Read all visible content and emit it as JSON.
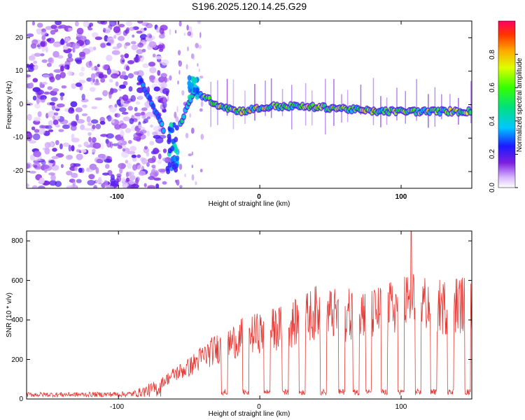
{
  "figure": {
    "title": "S196.2025.120.14.25.G29",
    "accent_series_color": "#e53935"
  },
  "chart_data": [
    {
      "type": "heatmap",
      "name": "spectrogram",
      "xlabel": "Height of straight line (km)",
      "ylabel": "Frequency (Hz)",
      "xlim": [
        -165,
        150
      ],
      "ylim": [
        -25,
        25
      ],
      "x_ticks": [
        -100,
        0,
        100
      ],
      "y_ticks": [
        20,
        10,
        0,
        -10,
        -20
      ],
      "colorbar": {
        "label": "Normalized spectral amplitude",
        "range": [
          0,
          1
        ],
        "ticks": [
          "0.0",
          "0.2",
          "0.4",
          "0.6",
          "0.8"
        ],
        "colormap": "rainbow"
      },
      "segments": [
        {
          "x": -75,
          "y": -1
        },
        {
          "x": -63,
          "y": -12
        },
        {
          "x": -46,
          "y": 4
        },
        {
          "x": -30,
          "y": 0
        },
        {
          "x": -15,
          "y": -2
        },
        {
          "x": 10,
          "y": -0.5
        },
        {
          "x": 25,
          "y": -0.5
        },
        {
          "x": 55,
          "y": -1
        },
        {
          "x": 80,
          "y": -2
        },
        {
          "x": 95,
          "y": -2
        },
        {
          "x": 125,
          "y": -2
        },
        {
          "x": 145,
          "y": -2
        }
      ]
    },
    {
      "type": "line",
      "name": "snr",
      "xlabel": "Height of straight line (km)",
      "ylabel": "SNR (10 * v/v)",
      "xlim": [
        -165,
        150
      ],
      "ylim": [
        0,
        850
      ],
      "x_ticks": [
        -100,
        0,
        100
      ],
      "y_ticks": [
        0,
        200,
        400,
        600,
        800
      ],
      "series": [
        {
          "color": "#e53935",
          "envelope": [
            {
              "x": -165,
              "y": 30
            },
            {
              "x": -120,
              "y": 30
            },
            {
              "x": -90,
              "y": 35
            },
            {
              "x": -70,
              "y": 100
            },
            {
              "x": -60,
              "y": 160
            },
            {
              "x": -50,
              "y": 200
            },
            {
              "x": -40,
              "y": 270
            },
            {
              "x": -30,
              "y": 320
            },
            {
              "x": -20,
              "y": 360
            },
            {
              "x": -10,
              "y": 400
            },
            {
              "x": 0,
              "y": 420
            },
            {
              "x": 10,
              "y": 440
            },
            {
              "x": 20,
              "y": 460
            },
            {
              "x": 30,
              "y": 500
            },
            {
              "x": 40,
              "y": 550
            },
            {
              "x": 50,
              "y": 540
            },
            {
              "x": 60,
              "y": 520
            },
            {
              "x": 70,
              "y": 560
            },
            {
              "x": 80,
              "y": 540
            },
            {
              "x": 90,
              "y": 560
            },
            {
              "x": 100,
              "y": 600
            },
            {
              "x": 110,
              "y": 620
            },
            {
              "x": 120,
              "y": 600
            },
            {
              "x": 130,
              "y": 580
            },
            {
              "x": 140,
              "y": 600
            },
            {
              "x": 150,
              "y": 600
            }
          ],
          "dropouts": [
            -25,
            -10,
            5,
            18,
            30,
            45,
            58,
            68,
            77,
            88,
            100,
            112,
            123,
            135,
            147
          ],
          "peak": {
            "x": 107,
            "y": 850
          }
        }
      ]
    }
  ]
}
